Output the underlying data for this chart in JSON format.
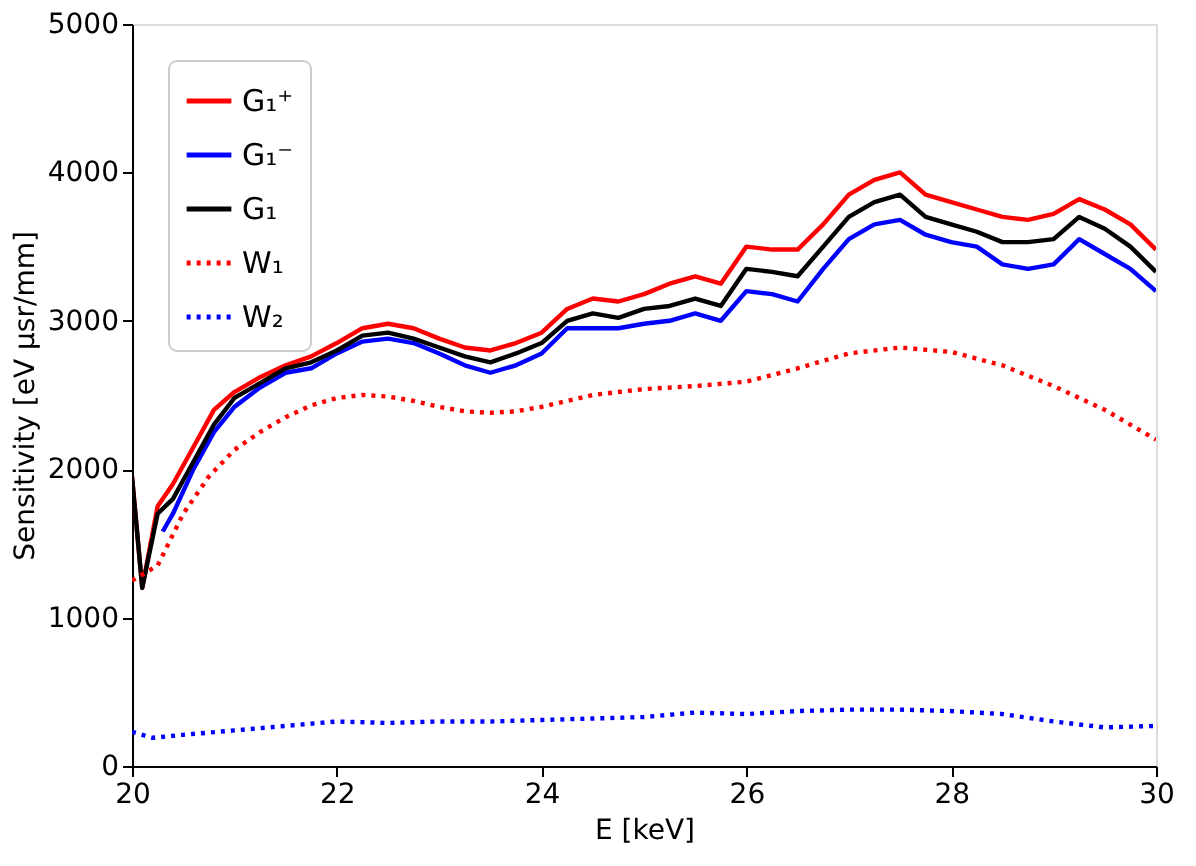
{
  "chart_data": {
    "type": "line",
    "xlabel": "E [keV]",
    "ylabel": "Sensitivity [eV μsr/mm]",
    "xlim": [
      20,
      30
    ],
    "xticks": [
      20,
      22,
      24,
      26,
      28,
      30
    ],
    "ylim": [
      0,
      5000
    ],
    "yticks": [
      0,
      1000,
      2000,
      3000,
      4000,
      5000
    ],
    "grid": false,
    "legend": "top left",
    "marker": "none",
    "series": [
      {
        "name": "G₁⁺",
        "color": "#ff0000",
        "line_style": "solid",
        "x": [
          20,
          20.1,
          20.25,
          20.4,
          20.6,
          20.8,
          21,
          21.25,
          21.5,
          21.75,
          22,
          22.25,
          22.5,
          22.75,
          23,
          23.25,
          23.5,
          23.75,
          24,
          24.25,
          24.5,
          24.75,
          25,
          25.25,
          25.5,
          25.75,
          26,
          26.25,
          26.5,
          26.75,
          27,
          27.25,
          27.5,
          27.75,
          28,
          28.25,
          28.5,
          28.75,
          29,
          29.25,
          29.5,
          29.75,
          30
        ],
        "values": [
          1950,
          1200,
          1750,
          1900,
          2150,
          2400,
          2520,
          2620,
          2700,
          2760,
          2850,
          2950,
          2980,
          2950,
          2880,
          2820,
          2800,
          2850,
          2920,
          3080,
          3150,
          3130,
          3180,
          3250,
          3300,
          3250,
          3500,
          3480,
          3480,
          3650,
          3850,
          3950,
          4000,
          3850,
          3800,
          3750,
          3700,
          3680,
          3720,
          3820,
          3750,
          3650,
          3480
        ]
      },
      {
        "name": "G₁⁻",
        "color": "#0000ff",
        "line_style": "solid",
        "x": [
          20.3,
          20.4,
          20.6,
          20.8,
          21,
          21.25,
          21.5,
          21.75,
          22,
          22.25,
          22.5,
          22.75,
          23,
          23.25,
          23.5,
          23.75,
          24,
          24.25,
          24.5,
          24.75,
          25,
          25.25,
          25.5,
          25.75,
          26,
          26.25,
          26.5,
          26.75,
          27,
          27.25,
          27.5,
          27.75,
          28,
          28.25,
          28.5,
          28.75,
          29,
          29.25,
          29.5,
          29.75,
          30
        ],
        "values": [
          1580,
          1700,
          2000,
          2250,
          2420,
          2550,
          2650,
          2680,
          2780,
          2860,
          2880,
          2850,
          2780,
          2700,
          2650,
          2700,
          2780,
          2950,
          2950,
          2950,
          2980,
          3000,
          3050,
          3000,
          3200,
          3180,
          3130,
          3350,
          3550,
          3650,
          3680,
          3580,
          3530,
          3500,
          3380,
          3350,
          3380,
          3550,
          3450,
          3350,
          3200
        ]
      },
      {
        "name": "G₁",
        "color": "#000000",
        "line_style": "solid",
        "x": [
          20,
          20.1,
          20.25,
          20.4,
          20.6,
          20.8,
          21,
          21.25,
          21.5,
          21.75,
          22,
          22.25,
          22.5,
          22.75,
          23,
          23.25,
          23.5,
          23.75,
          24,
          24.25,
          24.5,
          24.75,
          25,
          25.25,
          25.5,
          25.75,
          26,
          26.25,
          26.5,
          26.75,
          27,
          27.25,
          27.5,
          27.75,
          28,
          28.25,
          28.5,
          28.75,
          29,
          29.25,
          29.5,
          29.75,
          30
        ],
        "values": [
          1950,
          1200,
          1700,
          1800,
          2050,
          2300,
          2480,
          2580,
          2680,
          2720,
          2800,
          2900,
          2920,
          2880,
          2820,
          2760,
          2720,
          2780,
          2850,
          3000,
          3050,
          3020,
          3080,
          3100,
          3150,
          3100,
          3350,
          3330,
          3300,
          3500,
          3700,
          3800,
          3850,
          3700,
          3650,
          3600,
          3530,
          3530,
          3550,
          3700,
          3620,
          3500,
          3330
        ]
      },
      {
        "name": "W₁",
        "color": "#ff0000",
        "line_style": "dotted",
        "x": [
          20,
          20.25,
          20.5,
          20.75,
          21,
          21.25,
          21.5,
          21.75,
          22,
          22.25,
          22.5,
          22.75,
          23,
          23.25,
          23.5,
          23.75,
          24,
          24.25,
          24.5,
          24.75,
          25,
          25.5,
          26,
          26.5,
          27,
          27.5,
          28,
          28.5,
          29,
          29.5,
          30
        ],
        "values": [
          1250,
          1350,
          1700,
          1950,
          2130,
          2250,
          2350,
          2430,
          2480,
          2500,
          2490,
          2460,
          2420,
          2390,
          2380,
          2390,
          2420,
          2460,
          2500,
          2520,
          2540,
          2560,
          2590,
          2680,
          2780,
          2820,
          2790,
          2700,
          2560,
          2400,
          2200
        ]
      },
      {
        "name": "W₂",
        "color": "#0000ff",
        "line_style": "dotted",
        "x": [
          20,
          20.2,
          20.5,
          21,
          21.5,
          22,
          22.5,
          23,
          23.5,
          24,
          24.5,
          25,
          25.5,
          26,
          26.5,
          27,
          27.5,
          28,
          28.5,
          29,
          29.5,
          30
        ],
        "values": [
          230,
          190,
          210,
          240,
          270,
          300,
          290,
          300,
          300,
          310,
          320,
          330,
          360,
          350,
          370,
          380,
          380,
          370,
          350,
          300,
          260,
          270
        ]
      }
    ]
  }
}
